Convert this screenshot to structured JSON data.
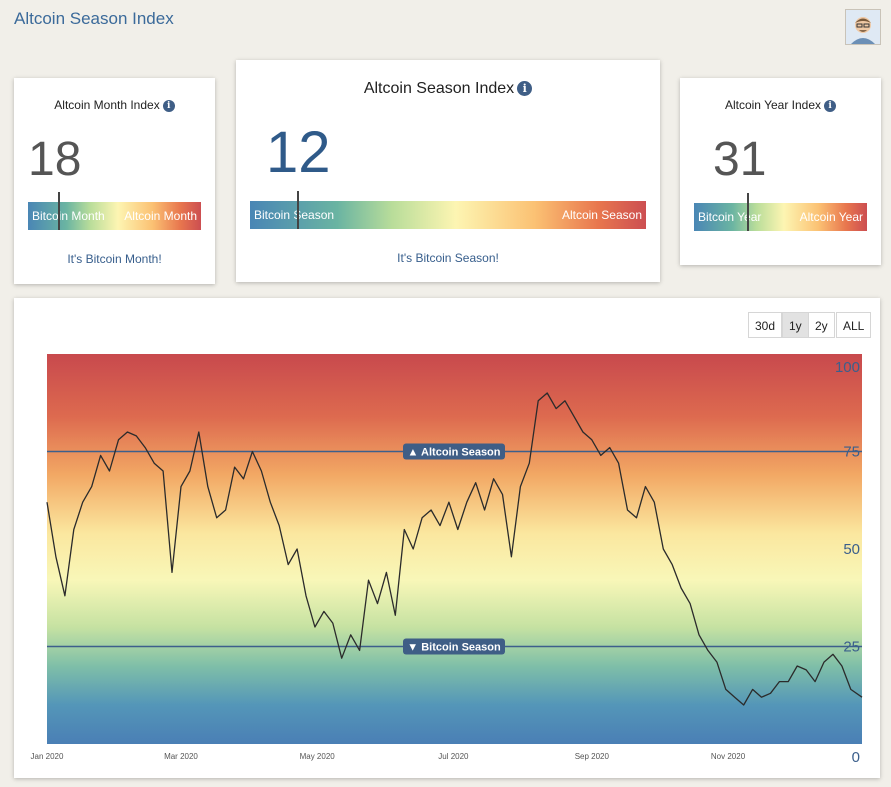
{
  "header": {
    "title": "Altcoin Season Index"
  },
  "cards": {
    "month": {
      "title": "Altcoin Month Index",
      "value": "18",
      "left_label": "Bitcoin Month",
      "right_label": "Altcoin Month",
      "status": "It's Bitcoin Month!",
      "level": 18
    },
    "season": {
      "title": "Altcoin Season Index",
      "value": "12",
      "left_label": "Bitcoin Season",
      "right_label": "Altcoin Season",
      "status": "It's Bitcoin Season!",
      "level": 12
    },
    "year": {
      "title": "Altcoin Year Index",
      "value": "31",
      "left_label": "Bitcoin Year",
      "right_label": "Altcoin Year",
      "status": "",
      "level": 31
    }
  },
  "range_buttons": [
    "30d",
    "1y",
    "2y",
    "ALL"
  ],
  "range_selected": "1y",
  "chart_data": {
    "type": "line",
    "xlabel": "",
    "ylabel": "",
    "ylim": [
      0,
      100
    ],
    "xlim": [
      "2020-01-01",
      "2020-12-31"
    ],
    "y_ticks": [
      "0",
      "25",
      "50",
      "75",
      "100"
    ],
    "x_tick_labels": [
      "Jan 2020",
      "Mar 2020",
      "May 2020",
      "Jul 2020",
      "Sep 2020",
      "Nov 2020"
    ],
    "x_tick_dates": [
      "2020-01-01",
      "2020-03-01",
      "2020-05-01",
      "2020-07-01",
      "2020-09-01",
      "2020-11-01"
    ],
    "grid": false,
    "background": "vertical gradient: red at 100, yellow at 50, blue at 0",
    "thresholds": [
      {
        "label": "▲ Altcoin Season",
        "value": 75
      },
      {
        "label": "▼ Bitcoin Season",
        "value": 25
      }
    ],
    "series": [
      {
        "x": [
          "2020-01-01",
          "2020-01-05",
          "2020-01-09",
          "2020-01-13",
          "2020-01-17",
          "2020-01-21",
          "2020-01-25",
          "2020-01-29",
          "2020-02-02",
          "2020-02-06",
          "2020-02-10",
          "2020-02-14",
          "2020-02-18",
          "2020-02-22",
          "2020-02-26",
          "2020-03-01",
          "2020-03-05",
          "2020-03-09",
          "2020-03-13",
          "2020-03-17",
          "2020-03-21",
          "2020-03-25",
          "2020-03-29",
          "2020-04-02",
          "2020-04-06",
          "2020-04-10",
          "2020-04-14",
          "2020-04-18",
          "2020-04-22",
          "2020-04-26",
          "2020-04-30",
          "2020-05-04",
          "2020-05-08",
          "2020-05-12",
          "2020-05-16",
          "2020-05-20",
          "2020-05-24",
          "2020-05-28",
          "2020-06-01",
          "2020-06-05",
          "2020-06-09",
          "2020-06-13",
          "2020-06-17",
          "2020-06-21",
          "2020-06-25",
          "2020-06-29",
          "2020-07-03",
          "2020-07-07",
          "2020-07-11",
          "2020-07-15",
          "2020-07-19",
          "2020-07-23",
          "2020-07-27",
          "2020-07-31",
          "2020-08-04",
          "2020-08-08",
          "2020-08-12",
          "2020-08-16",
          "2020-08-20",
          "2020-08-24",
          "2020-08-28",
          "2020-09-01",
          "2020-09-05",
          "2020-09-09",
          "2020-09-13",
          "2020-09-17",
          "2020-09-21",
          "2020-09-25",
          "2020-09-29",
          "2020-10-03",
          "2020-10-07",
          "2020-10-11",
          "2020-10-15",
          "2020-10-19",
          "2020-10-23",
          "2020-10-27",
          "2020-10-31",
          "2020-11-04",
          "2020-11-08",
          "2020-11-12",
          "2020-11-16",
          "2020-11-20",
          "2020-11-24",
          "2020-11-28",
          "2020-12-02",
          "2020-12-06",
          "2020-12-10",
          "2020-12-14",
          "2020-12-18",
          "2020-12-22",
          "2020-12-26",
          "2020-12-31"
        ],
        "values": [
          62,
          48,
          38,
          55,
          62,
          66,
          74,
          70,
          78,
          80,
          79,
          76,
          72,
          70,
          44,
          66,
          70,
          80,
          66,
          58,
          60,
          71,
          68,
          75,
          70,
          62,
          56,
          46,
          50,
          38,
          30,
          34,
          31,
          22,
          28,
          24,
          42,
          36,
          44,
          33,
          55,
          50,
          58,
          60,
          56,
          62,
          55,
          62,
          67,
          60,
          68,
          64,
          48,
          66,
          72,
          88,
          90,
          86,
          88,
          84,
          80,
          78,
          74,
          76,
          72,
          60,
          58,
          66,
          62,
          50,
          46,
          40,
          36,
          28,
          24,
          21,
          14,
          12,
          10,
          14,
          12,
          13,
          16,
          16,
          20,
          19,
          16,
          21,
          23,
          20,
          14,
          12
        ]
      }
    ]
  }
}
